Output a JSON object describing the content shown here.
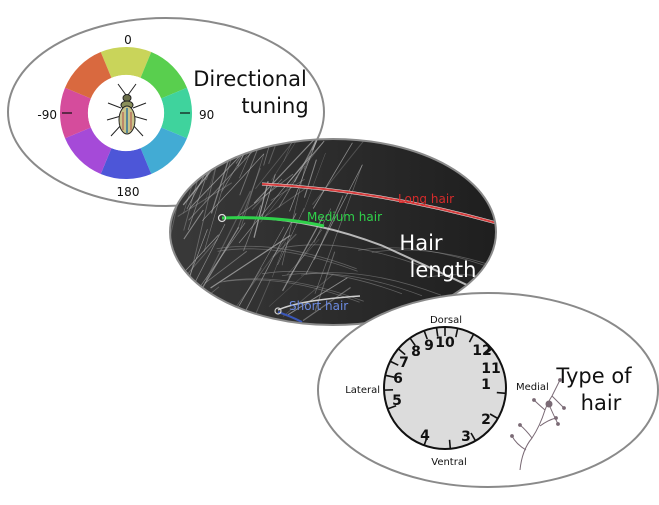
{
  "directional_tuning": {
    "heading_line1": "Directional",
    "heading_line2": "tuning",
    "angle_labels": {
      "top": "0",
      "right": "90",
      "bottom": "180",
      "left": "-90"
    },
    "wheel_colors": [
      "#c9d45a",
      "#59cf4e",
      "#3fd39d",
      "#42abd4",
      "#4d56d8",
      "#a54ad8",
      "#d54c9c",
      "#d9693f"
    ]
  },
  "hair_length": {
    "heading_line1": "Hair",
    "heading_line2": "length",
    "labels": {
      "long": "Long hair",
      "medium": "Medium hair",
      "short": "Short hair"
    },
    "colors": {
      "long": "#d42b2b",
      "medium": "#2fd24a",
      "short": "#3a57b8"
    }
  },
  "type_of_hair": {
    "heading_line1": "Type of",
    "heading_line2": "hair",
    "directions": {
      "top": "Dorsal",
      "bottom": "Ventral",
      "left": "Lateral",
      "right": "Medial"
    },
    "dial_numbers": [
      "1",
      "2",
      "3",
      "4",
      "5",
      "6",
      "7",
      "8",
      "9",
      "10",
      "11",
      "12"
    ]
  }
}
